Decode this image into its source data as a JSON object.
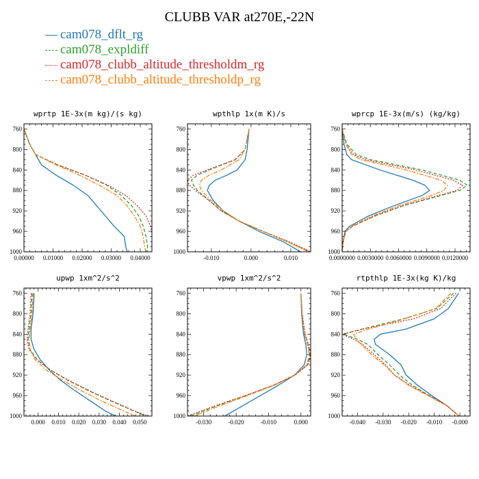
{
  "title": "CLUBB VAR at270E,-22N",
  "legend": [
    {
      "label": "cam078_dflt_rg",
      "color": "#1f77b4",
      "dash": "solid"
    },
    {
      "label": "cam078_expldiff",
      "color": "#2ca02c",
      "dash": "dashed"
    },
    {
      "label": "cam078_clubb_altitude_thresholdm_rg",
      "color": "#d62728",
      "dash": "dotted"
    },
    {
      "label": "cam078_clubb_altitude_thresholdp_rg",
      "color": "#ff7f0e",
      "dash": "dashdot"
    }
  ],
  "chart_data": [
    {
      "type": "line",
      "title": "wprtp  1E-3x(m kg)/(s kg)",
      "xlim": [
        0,
        0.044
      ],
      "ylim": [
        1000,
        750
      ],
      "xticks": [
        0,
        0.01,
        0.02,
        0.03,
        0.04
      ],
      "xticklabels": [
        "0.00000",
        "0.01000",
        "0.02000",
        "0.03000",
        "0.04000"
      ],
      "yticks": [
        760,
        800,
        840,
        880,
        920,
        960,
        1000
      ],
      "y": [
        760,
        790,
        810,
        830,
        850,
        870,
        890,
        910,
        930,
        950,
        970,
        990,
        1000
      ],
      "series": [
        {
          "name": "cam078_dflt_rg",
          "values": [
            0.0,
            0.002,
            0.004,
            0.006,
            0.011,
            0.017,
            0.022,
            0.025,
            0.028,
            0.031,
            0.0345,
            0.035,
            0.0355
          ]
        },
        {
          "name": "cam078_expldiff",
          "values": [
            0.0,
            0.002,
            0.004,
            0.0115,
            0.021,
            0.0285,
            0.0335,
            0.037,
            0.0395,
            0.041,
            0.042,
            0.0425,
            0.0425
          ]
        },
        {
          "name": "cam078_clubb_altitude_thresholdm_rg",
          "values": [
            0.0,
            0.002,
            0.004,
            0.0115,
            0.021,
            0.029,
            0.035,
            0.039,
            0.042,
            0.0435,
            0.0442,
            0.0445,
            0.0445
          ]
        },
        {
          "name": "cam078_clubb_altitude_thresholdp_rg",
          "values": [
            0.0,
            0.002,
            0.004,
            0.011,
            0.019,
            0.026,
            0.032,
            0.0355,
            0.038,
            0.04,
            0.041,
            0.0415,
            0.042
          ]
        }
      ]
    },
    {
      "type": "line",
      "title": "wpthlp  1x(m K)/s",
      "xlim": [
        -0.016,
        0.015
      ],
      "ylim": [
        1000,
        750
      ],
      "xticks": [
        -0.01,
        0,
        0.01
      ],
      "xticklabels": [
        "-0.010",
        "0.000",
        "0.010"
      ],
      "yticks": [
        760,
        800,
        840,
        880,
        920,
        960,
        1000
      ],
      "y": [
        760,
        800,
        820,
        840,
        850,
        860,
        870,
        880,
        900,
        920,
        940,
        960,
        980,
        1000
      ],
      "series": [
        {
          "name": "cam078_dflt_rg",
          "values": [
            -0.0005,
            -0.001,
            -0.0015,
            -0.0035,
            -0.006,
            -0.009,
            -0.0105,
            -0.011,
            -0.0095,
            -0.007,
            -0.003,
            0.002,
            0.008,
            0.0125
          ]
        },
        {
          "name": "cam078_expldiff",
          "values": [
            -0.0005,
            -0.0015,
            -0.004,
            -0.0105,
            -0.0135,
            -0.015,
            -0.0145,
            -0.0135,
            -0.0105,
            -0.0075,
            -0.003,
            0.003,
            0.009,
            0.0148
          ]
        },
        {
          "name": "cam078_clubb_altitude_thresholdm_rg",
          "values": [
            -0.0005,
            -0.0015,
            -0.004,
            -0.011,
            -0.0145,
            -0.016,
            -0.0155,
            -0.014,
            -0.0105,
            -0.0075,
            -0.003,
            0.003,
            0.0095,
            0.015
          ]
        },
        {
          "name": "cam078_clubb_altitude_thresholdp_rg",
          "values": [
            -0.0005,
            -0.0015,
            -0.003,
            -0.0075,
            -0.0105,
            -0.0125,
            -0.013,
            -0.0125,
            -0.01,
            -0.007,
            -0.003,
            0.003,
            0.009,
            0.0145
          ]
        }
      ]
    },
    {
      "type": "line",
      "title": "wprcp  1E-3x(m/s) (kg/kg)",
      "xlim": [
        0,
        0.0136
      ],
      "ylim": [
        1000,
        750
      ],
      "xticks": [
        0,
        0.003,
        0.006,
        0.009,
        0.012
      ],
      "xticklabels": [
        "0.0000000",
        "0.0030000",
        "0.0060000",
        "0.0090000",
        "0.0120000"
      ],
      "yticks": [
        760,
        800,
        840,
        880,
        920,
        960,
        1000
      ],
      "y": [
        760,
        790,
        810,
        820,
        840,
        860,
        870,
        880,
        890,
        910,
        930,
        950,
        960,
        980,
        1000
      ],
      "series": [
        {
          "name": "cam078_dflt_rg",
          "values": [
            0.0,
            0.0002,
            0.0005,
            0.001,
            0.004,
            0.0075,
            0.0088,
            0.0093,
            0.0085,
            0.0055,
            0.0028,
            0.0008,
            0.0003,
            0.0001,
            0.0
          ]
        },
        {
          "name": "cam078_expldiff",
          "values": [
            0.0,
            0.0005,
            0.0015,
            0.003,
            0.0085,
            0.0125,
            0.0133,
            0.0125,
            0.0105,
            0.0065,
            0.0035,
            0.0011,
            0.0004,
            0.0001,
            0.0
          ]
        },
        {
          "name": "cam078_clubb_altitude_thresholdm_rg",
          "values": [
            0.0,
            0.0004,
            0.0012,
            0.0025,
            0.0078,
            0.0118,
            0.0128,
            0.0122,
            0.0102,
            0.0064,
            0.0034,
            0.0011,
            0.0004,
            0.0001,
            0.0
          ]
        },
        {
          "name": "cam078_clubb_altitude_thresholdp_rg",
          "values": [
            0.0,
            0.0004,
            0.001,
            0.002,
            0.0068,
            0.0105,
            0.0112,
            0.0108,
            0.0095,
            0.006,
            0.0032,
            0.001,
            0.0004,
            0.0001,
            0.0
          ]
        }
      ]
    },
    {
      "type": "line",
      "title": "upwp  1xm^2/s^2",
      "xlim": [
        -0.007,
        0.056
      ],
      "ylim": [
        1000,
        750
      ],
      "xticks": [
        0,
        0.01,
        0.02,
        0.03,
        0.04,
        0.05
      ],
      "xticklabels": [
        "0.000",
        "0.010",
        "0.020",
        "0.030",
        "0.040",
        "0.050"
      ],
      "yticks": [
        760,
        800,
        840,
        880,
        920,
        960,
        1000
      ],
      "y": [
        760,
        800,
        830,
        850,
        870,
        890,
        910,
        930,
        950,
        970,
        990,
        1000
      ],
      "series": [
        {
          "name": "cam078_dflt_rg",
          "values": [
            -0.002,
            -0.0025,
            -0.0035,
            -0.0035,
            -0.002,
            0.001,
            0.0055,
            0.011,
            0.018,
            0.0255,
            0.033,
            0.038
          ]
        },
        {
          "name": "cam078_expldiff",
          "values": [
            -0.003,
            -0.0035,
            -0.0045,
            -0.005,
            -0.004,
            -0.0005,
            0.006,
            0.0145,
            0.0245,
            0.0355,
            0.047,
            0.053
          ]
        },
        {
          "name": "cam078_clubb_altitude_thresholdm_rg",
          "values": [
            -0.0035,
            -0.004,
            -0.005,
            -0.0055,
            -0.0045,
            -0.0005,
            0.006,
            0.015,
            0.025,
            0.036,
            0.0475,
            0.054
          ]
        },
        {
          "name": "cam078_clubb_altitude_thresholdp_rg",
          "values": [
            -0.0025,
            -0.003,
            -0.004,
            -0.0045,
            -0.004,
            -0.0015,
            0.004,
            0.012,
            0.021,
            0.031,
            0.042,
            0.048
          ]
        }
      ]
    },
    {
      "type": "line",
      "title": "vpwp  1xm^2/s^2",
      "xlim": [
        -0.035,
        0.003
      ],
      "ylim": [
        1000,
        750
      ],
      "xticks": [
        -0.03,
        -0.02,
        -0.01,
        0
      ],
      "xticklabels": [
        "-0.030",
        "-0.020",
        "-0.010",
        "0.000"
      ],
      "yticks": [
        760,
        800,
        840,
        880,
        920,
        960,
        1000
      ],
      "y": [
        760,
        800,
        840,
        860,
        880,
        900,
        920,
        940,
        960,
        980,
        1000
      ],
      "series": [
        {
          "name": "cam078_dflt_rg",
          "values": [
            0.0,
            0.0002,
            0.0008,
            0.0015,
            0.0018,
            0.001,
            -0.002,
            -0.007,
            -0.0125,
            -0.018,
            -0.0235
          ]
        },
        {
          "name": "cam078_expldiff",
          "values": [
            0.0,
            0.0003,
            0.0012,
            0.0022,
            0.0028,
            0.002,
            -0.002,
            -0.0085,
            -0.017,
            -0.026,
            -0.034
          ]
        },
        {
          "name": "cam078_clubb_altitude_thresholdm_rg",
          "values": [
            0.0,
            0.0004,
            0.0013,
            0.0023,
            0.003,
            0.0022,
            -0.0018,
            -0.0085,
            -0.0172,
            -0.0265,
            -0.035
          ]
        },
        {
          "name": "cam078_clubb_altitude_thresholdp_rg",
          "values": [
            0.0,
            0.0003,
            0.0011,
            0.002,
            0.0026,
            0.0018,
            -0.002,
            -0.0082,
            -0.0165,
            -0.025,
            -0.033
          ]
        }
      ]
    },
    {
      "type": "line",
      "title": "rtpthlp  1E-3x(kg K)/kg",
      "xlim": [
        -0.046,
        0.004
      ],
      "ylim": [
        1000,
        750
      ],
      "xticks": [
        -0.04,
        -0.03,
        -0.02,
        -0.01,
        0
      ],
      "xticklabels": [
        "-0.040",
        "-0.030",
        "-0.020",
        "-0.010",
        "-0.000"
      ],
      "yticks": [
        760,
        800,
        840,
        880,
        920,
        960,
        1000
      ],
      "y": [
        760,
        790,
        810,
        830,
        840,
        850,
        860,
        880,
        900,
        920,
        940,
        960,
        980,
        1000
      ],
      "series": [
        {
          "name": "cam078_dflt_rg",
          "values": [
            -0.0005,
            -0.0045,
            -0.01,
            -0.021,
            -0.031,
            -0.0335,
            -0.033,
            -0.0275,
            -0.023,
            -0.021,
            -0.0165,
            -0.011,
            -0.005,
            -0.0003
          ]
        },
        {
          "name": "cam078_expldiff",
          "values": [
            -0.0025,
            -0.009,
            -0.022,
            -0.038,
            -0.0455,
            -0.04,
            -0.036,
            -0.032,
            -0.0275,
            -0.0235,
            -0.0185,
            -0.012,
            -0.005,
            -0.0003
          ]
        },
        {
          "name": "cam078_clubb_altitude_thresholdm_rg",
          "values": [
            -0.0015,
            -0.0075,
            -0.018,
            -0.038,
            -0.0462,
            -0.0415,
            -0.038,
            -0.0335,
            -0.029,
            -0.0255,
            -0.0195,
            -0.012,
            -0.005,
            -0.0003
          ]
        },
        {
          "name": "cam078_clubb_altitude_thresholdp_rg",
          "values": [
            -0.0035,
            -0.0095,
            -0.0215,
            -0.0355,
            -0.0415,
            -0.0405,
            -0.0385,
            -0.0345,
            -0.0295,
            -0.0255,
            -0.02,
            -0.0125,
            -0.005,
            -0.0003
          ]
        }
      ]
    }
  ]
}
